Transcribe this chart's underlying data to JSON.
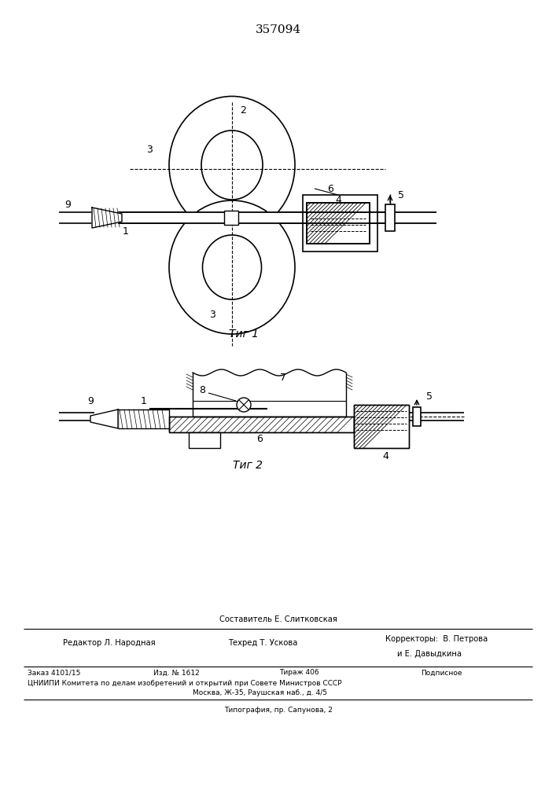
{
  "title": "357094",
  "fig1_label": "Τиг 1",
  "fig2_label": "Τиг 2",
  "bg_color": "#ffffff",
  "line_color": "#000000",
  "bottom_text": {
    "composer": "Составитель Е. Слитковская",
    "editor": "Редактор Л. Народная",
    "techred": "Техред Т. Ускова",
    "correctors": "Корректоры:  В. Петрова",
    "corrector2": "и Е. Давыдкина",
    "order": "Заказ 4101/15",
    "izd": "Изд. № 1612",
    "tirazh": "Тираж 406",
    "podpisnoe": "Подписное",
    "cniipи": "ЦНИИПИ Комитета по делам изобретений и открытий при Совете Министров СССР",
    "moscow": "Москва, Ж-35, Раушская наб., д. 4/5",
    "tipografia": "Типография, пр. Сапунова, 2"
  }
}
